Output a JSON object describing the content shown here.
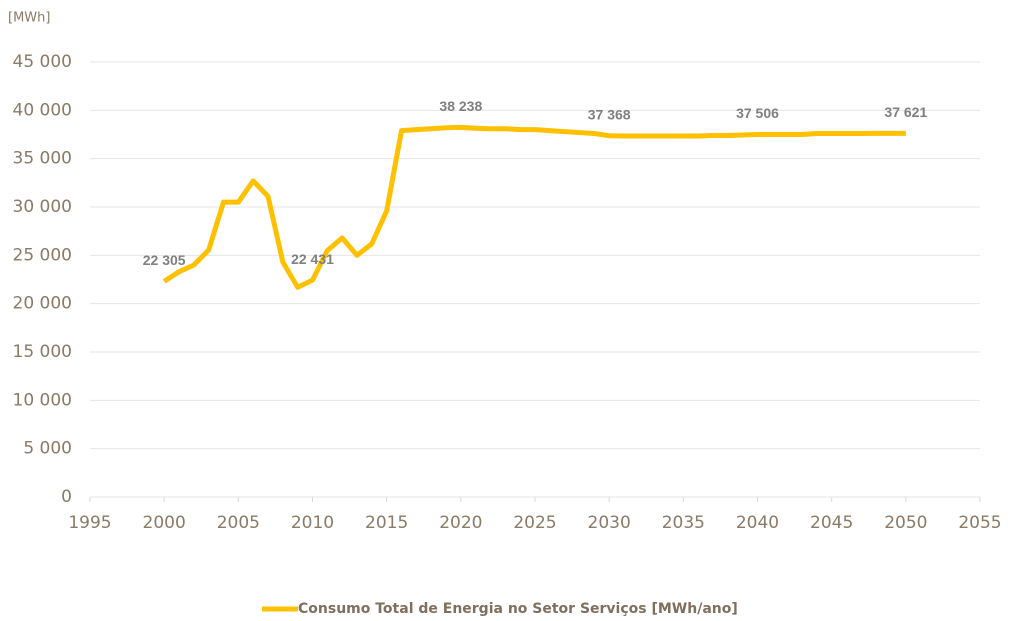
{
  "chart_data": {
    "type": "line",
    "y_unit": "[MWh]",
    "x": [
      2000,
      2001,
      2002,
      2003,
      2004,
      2005,
      2006,
      2007,
      2008,
      2009,
      2010,
      2011,
      2012,
      2013,
      2014,
      2015,
      2016,
      2017,
      2018,
      2019,
      2020,
      2021,
      2022,
      2023,
      2024,
      2025,
      2026,
      2027,
      2028,
      2029,
      2030,
      2031,
      2032,
      2033,
      2034,
      2035,
      2036,
      2037,
      2038,
      2039,
      2040,
      2041,
      2042,
      2043,
      2044,
      2045,
      2046,
      2047,
      2048,
      2049,
      2050
    ],
    "series": [
      {
        "name": "Consumo Total de Energia no Setor Serviços [MWh/ano]",
        "color": "#ffc000",
        "values": [
          22305,
          23300,
          24000,
          25550,
          30500,
          30500,
          32700,
          31100,
          24300,
          21700,
          22431,
          25500,
          26800,
          25000,
          26200,
          29600,
          37900,
          38000,
          38100,
          38200,
          38238,
          38150,
          38100,
          38100,
          38000,
          38000,
          37900,
          37800,
          37700,
          37600,
          37368,
          37350,
          37350,
          37350,
          37350,
          37350,
          37350,
          37400,
          37400,
          37450,
          37506,
          37500,
          37500,
          37500,
          37600,
          37600,
          37600,
          37600,
          37610,
          37620,
          37621
        ],
        "value_labels": [
          "22 305",
          null,
          null,
          null,
          null,
          null,
          null,
          null,
          null,
          null,
          "22 431",
          null,
          null,
          null,
          null,
          null,
          null,
          null,
          null,
          null,
          "38 238",
          null,
          null,
          null,
          null,
          null,
          null,
          null,
          null,
          null,
          "37 368",
          null,
          null,
          null,
          null,
          null,
          null,
          null,
          null,
          null,
          "37 506",
          null,
          null,
          null,
          null,
          null,
          null,
          null,
          null,
          null,
          "37 621"
        ]
      }
    ],
    "xlim": [
      1995,
      2055
    ],
    "xticks": [
      1995,
      2000,
      2005,
      2010,
      2015,
      2020,
      2025,
      2030,
      2035,
      2040,
      2045,
      2050,
      2055
    ],
    "ylim": [
      0,
      45000
    ],
    "yticks": [
      0,
      {
        "value": 5000,
        "label": "5 000"
      },
      {
        "value": 10000,
        "label": "10 000"
      },
      {
        "value": 15000,
        "label": "15 000"
      },
      {
        "value": 20000,
        "label": "20 000"
      },
      {
        "value": 25000,
        "label": "25 000"
      },
      {
        "value": 30000,
        "label": "30 000"
      },
      {
        "value": 35000,
        "label": "35 000"
      },
      {
        "value": 40000,
        "label": "40 000"
      },
      {
        "value": 45000,
        "label": "45 000"
      }
    ],
    "grid": true,
    "legend": "bottom"
  }
}
